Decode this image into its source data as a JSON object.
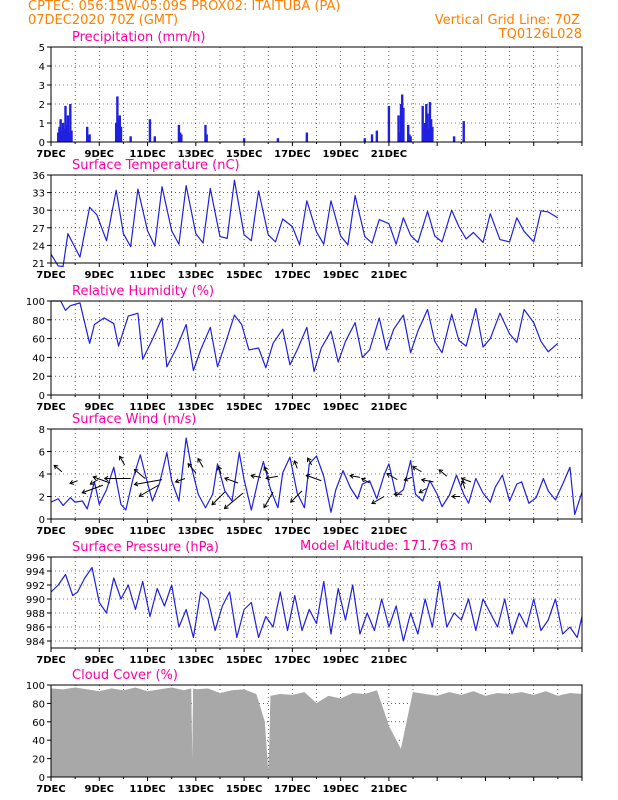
{
  "header": {
    "line1_left": "CPTEC:    056:15W-05:09S   PROX02: ITAITUBA (PA)",
    "line2_left": "07DEC2020 70Z (GMT)",
    "line2_right": "Vertical Grid Line: 70Z",
    "line3_right": "TQ0126L028",
    "model_altitude": "Model Altitude: 171.763 m"
  },
  "colors": {
    "header": "#ff7f00",
    "panel_title": "#ff00a0",
    "series": "#2020e0",
    "cloud_fill": "#a8a8a8",
    "wind_arrow": "#000000"
  },
  "chart_data": [
    {
      "type": "bar",
      "title": "Precipitation (mm/h)",
      "ylim": [
        0,
        5
      ],
      "yticks": [
        0,
        1,
        2,
        3,
        4,
        5
      ],
      "x_tick_labels": [
        "7DEC",
        "9DEC",
        "11DEC",
        "13DEC",
        "15DEC",
        "17DEC",
        "19DEC",
        "21DEC"
      ],
      "grid": true,
      "x_day": [
        0.3,
        0.35,
        0.4,
        0.45,
        0.5,
        0.55,
        0.6,
        0.65,
        0.7,
        0.75,
        0.8,
        0.85,
        1.5,
        1.55,
        1.6,
        2.7,
        2.75,
        2.8,
        2.85,
        2.9,
        3.3,
        4.1,
        4.3,
        5.3,
        5.35,
        5.4,
        6.4,
        6.45,
        8.0,
        9.4,
        10.6,
        13.0,
        13.3,
        13.5,
        14.0,
        14.4,
        14.45,
        14.5,
        14.55,
        14.6,
        14.8,
        14.85,
        14.9,
        15.4,
        15.45,
        15.5,
        15.55,
        15.6,
        15.65,
        15.7,
        15.75,
        15.8,
        16.7,
        17.1
      ],
      "values": [
        0.5,
        0.8,
        1.2,
        0.6,
        1.0,
        0.7,
        1.9,
        0.9,
        1.4,
        0.5,
        2.0,
        0.6,
        0.8,
        0.3,
        0.4,
        1.0,
        2.4,
        1.2,
        1.4,
        0.8,
        0.3,
        1.2,
        0.3,
        0.9,
        0.5,
        0.4,
        0.9,
        0.4,
        0.2,
        0.2,
        0.5,
        0.2,
        0.4,
        0.6,
        1.9,
        1.4,
        0.5,
        2.0,
        2.5,
        1.8,
        0.9,
        0.4,
        0.3,
        1.9,
        0.8,
        1.0,
        2.0,
        1.5,
        0.7,
        2.1,
        1.2,
        0.8,
        0.3,
        1.1
      ]
    },
    {
      "type": "line",
      "title": "Surface Temperature (nC)",
      "ylim": [
        21,
        36
      ],
      "yticks": [
        21,
        24,
        27,
        30,
        33,
        36
      ],
      "x_tick_labels": [
        "7DEC",
        "9DEC",
        "11DEC",
        "13DEC",
        "15DEC",
        "17DEC",
        "19DEC",
        "21DEC"
      ],
      "grid": true,
      "x_day": [
        0,
        0.3,
        0.5,
        0.7,
        1.2,
        1.6,
        1.9,
        2.3,
        2.7,
        3.0,
        3.3,
        3.6,
        4.0,
        4.3,
        4.6,
        5.0,
        5.3,
        5.6,
        6.0,
        6.3,
        6.6,
        7.0,
        7.3,
        7.6,
        8.0,
        8.3,
        8.6,
        9.0,
        9.3,
        9.6,
        10.0,
        10.3,
        10.6,
        11.0,
        11.3,
        11.6,
        12.0,
        12.3,
        12.6,
        13.0,
        13.3,
        13.6,
        14.0,
        14.3,
        14.6,
        14.9,
        15.2,
        15.6,
        15.9,
        16.2,
        16.6,
        16.9,
        17.2,
        17.5,
        17.9,
        18.2,
        18.6,
        19.0,
        19.3,
        19.6,
        20.0,
        20.3,
        20.6,
        21.0
      ],
      "values": [
        22.5,
        20.5,
        20.4,
        26,
        22,
        30.5,
        29.2,
        24.8,
        33.4,
        26,
        23.8,
        33.6,
        26.5,
        23.9,
        34,
        26.5,
        24.2,
        34.2,
        26,
        24.4,
        33.7,
        25.5,
        25.2,
        35.1,
        25.8,
        24.8,
        33.3,
        25.8,
        24.6,
        28.5,
        27.2,
        24.1,
        31.6,
        26.3,
        24.2,
        31.6,
        25.6,
        24.1,
        32.5,
        25.5,
        24.4,
        28.4,
        27.7,
        24.2,
        28.7,
        25.7,
        24.5,
        29.8,
        25.6,
        24.6,
        30,
        27.2,
        25.1,
        26.2,
        24.5,
        29.4,
        25,
        24.6,
        28.7,
        26.4,
        24.6,
        29.9,
        29.7,
        28.7
      ]
    },
    {
      "type": "line",
      "title": "Relative Humidity (%)",
      "ylim": [
        0,
        100
      ],
      "yticks": [
        0,
        20,
        40,
        60,
        80,
        100
      ],
      "x_tick_labels": [
        "7DEC",
        "9DEC",
        "11DEC",
        "13DEC",
        "15DEC",
        "17DEC",
        "19DEC",
        "21DEC"
      ],
      "grid": true,
      "x_day": [
        0,
        0.4,
        0.6,
        0.8,
        1.2,
        1.6,
        1.8,
        2.2,
        2.6,
        2.8,
        3.2,
        3.6,
        3.8,
        4.2,
        4.6,
        4.8,
        5.2,
        5.6,
        5.9,
        6.2,
        6.6,
        6.9,
        7.2,
        7.6,
        7.9,
        8.2,
        8.6,
        8.9,
        9.2,
        9.6,
        9.9,
        10.2,
        10.6,
        10.9,
        11.2,
        11.6,
        11.9,
        12.2,
        12.6,
        12.9,
        13.2,
        13.6,
        13.9,
        14.2,
        14.6,
        14.9,
        15.2,
        15.6,
        15.9,
        16.2,
        16.6,
        16.9,
        17.2,
        17.6,
        17.9,
        18.2,
        18.6,
        19.0,
        19.3,
        19.6,
        20.0,
        20.3,
        20.6,
        21.0
      ],
      "values": [
        100,
        100,
        90,
        95,
        98,
        55,
        75,
        82,
        76,
        52,
        84,
        87,
        38,
        59,
        82,
        30,
        50,
        75,
        26,
        48,
        72,
        30,
        53,
        85,
        75,
        48,
        50,
        29,
        55,
        70,
        32,
        48,
        72,
        25,
        50,
        68,
        35,
        57,
        77,
        40,
        48,
        82,
        48,
        70,
        85,
        45,
        68,
        91,
        57,
        45,
        86,
        58,
        52,
        92,
        51,
        60,
        87,
        65,
        56,
        91,
        77,
        57,
        46,
        55
      ]
    },
    {
      "type": "line",
      "title": "Surface Wind (m/s)",
      "ylim": [
        0,
        8
      ],
      "yticks": [
        0,
        2,
        4,
        6,
        8
      ],
      "x_tick_labels": [
        "7DEC",
        "9DEC",
        "11DEC",
        "13DEC",
        "15DEC",
        "17DEC",
        "19DEC",
        "21DEC"
      ],
      "grid": true,
      "x_day": [
        0,
        0.3,
        0.5,
        0.8,
        1.0,
        1.3,
        1.5,
        1.8,
        2.0,
        2.3,
        2.6,
        2.9,
        3.1,
        3.4,
        3.7,
        3.9,
        4.2,
        4.5,
        4.8,
        5.0,
        5.3,
        5.6,
        5.8,
        6.1,
        6.4,
        6.7,
        6.9,
        7.2,
        7.5,
        7.8,
        8.0,
        8.3,
        8.6,
        8.8,
        9.1,
        9.4,
        9.6,
        9.9,
        10.2,
        10.5,
        10.7,
        11.0,
        11.3,
        11.6,
        11.8,
        12.1,
        12.4,
        12.7,
        12.9,
        13.2,
        13.5,
        13.8,
        14.0,
        14.3,
        14.6,
        14.9,
        15.1,
        15.4,
        15.7,
        16.0,
        16.2,
        16.5,
        16.8,
        17.1,
        17.3,
        17.6,
        17.9,
        18.2,
        18.4,
        18.7,
        19.0,
        19.3,
        19.5,
        19.8,
        20.1,
        20.4,
        20.6,
        20.9,
        21.2,
        21.5,
        21.7,
        22.0
      ],
      "values": [
        1.5,
        1.8,
        1.2,
        1.9,
        1.5,
        1.6,
        0.9,
        3.3,
        1.3,
        2.6,
        4.6,
        1.3,
        0.8,
        3.6,
        5.7,
        4,
        1.6,
        3.2,
        5.9,
        3.4,
        1.6,
        7.2,
        4.8,
        2.2,
        1,
        2.2,
        4.9,
        2.5,
        1.6,
        5.9,
        3.5,
        0.8,
        3.6,
        5.1,
        2.6,
        1,
        4.1,
        5.5,
        2.3,
        1,
        4.9,
        5.6,
        3.8,
        0.6,
        2.6,
        4.3,
        2.8,
        1.8,
        3.1,
        3.4,
        1.8,
        3.9,
        4.9,
        2.1,
        2.6,
        5.2,
        2.2,
        1.6,
        3.4,
        2.2,
        1.1,
        2.1,
        3.9,
        2.2,
        1.4,
        3.6,
        2.3,
        1.5,
        2.8,
        3.9,
        1.6,
        3.1,
        3.3,
        1.4,
        1.9,
        3.6,
        2.5,
        1.7,
        3.1,
        4.6,
        0.4,
        2.4
      ],
      "vectors": [
        {
          "x_day": 0.45,
          "level": 4.2,
          "dir_deg": 140,
          "len": 10
        },
        {
          "x_day": 1.1,
          "level": 3.4,
          "dir_deg": 200,
          "len": 8
        },
        {
          "x_day": 1.95,
          "level": 3.5,
          "dir_deg": 210,
          "len": 9
        },
        {
          "x_day": 2.15,
          "level": 3.0,
          "dir_deg": 200,
          "len": 22
        },
        {
          "x_day": 2.45,
          "level": 3.2,
          "dir_deg": 160,
          "len": 18
        },
        {
          "x_day": 3.05,
          "level": 4.8,
          "dir_deg": 120,
          "len": 10
        },
        {
          "x_day": 3.3,
          "level": 3.6,
          "dir_deg": 180,
          "len": 26
        },
        {
          "x_day": 3.9,
          "level": 3.6,
          "dir_deg": 140,
          "len": 14
        },
        {
          "x_day": 4.45,
          "level": 3.0,
          "dir_deg": 210,
          "len": 22
        },
        {
          "x_day": 4.6,
          "level": 3.5,
          "dir_deg": 190,
          "len": 28
        },
        {
          "x_day": 5.55,
          "level": 3.6,
          "dir_deg": 200,
          "len": 10
        },
        {
          "x_day": 6.0,
          "level": 4.1,
          "dir_deg": 130,
          "len": 12
        },
        {
          "x_day": 6.3,
          "level": 4.6,
          "dir_deg": 120,
          "len": 10
        },
        {
          "x_day": 7.05,
          "level": 4.0,
          "dir_deg": 110,
          "len": 8
        },
        {
          "x_day": 7.2,
          "level": 2.4,
          "dir_deg": 225,
          "len": 18
        },
        {
          "x_day": 7.75,
          "level": 3.2,
          "dir_deg": 160,
          "len": 14
        },
        {
          "x_day": 7.95,
          "level": 2.3,
          "dir_deg": 220,
          "len": 24
        },
        {
          "x_day": 8.7,
          "level": 3.7,
          "dir_deg": 170,
          "len": 10
        },
        {
          "x_day": 9.0,
          "level": 4.0,
          "dir_deg": 120,
          "len": 8
        },
        {
          "x_day": 9.2,
          "level": 2.4,
          "dir_deg": 240,
          "len": 18
        },
        {
          "x_day": 9.4,
          "level": 3.8,
          "dir_deg": 190,
          "len": 12
        },
        {
          "x_day": 10.2,
          "level": 4.5,
          "dir_deg": 110,
          "len": 8
        },
        {
          "x_day": 10.4,
          "level": 2.5,
          "dir_deg": 225,
          "len": 16
        },
        {
          "x_day": 10.8,
          "level": 4.8,
          "dir_deg": 120,
          "len": 8
        },
        {
          "x_day": 11.2,
          "level": 3.4,
          "dir_deg": 160,
          "len": 16
        },
        {
          "x_day": 12.8,
          "level": 3.7,
          "dir_deg": 170,
          "len": 10
        },
        {
          "x_day": 13.2,
          "level": 3.2,
          "dir_deg": 150,
          "len": 9
        },
        {
          "x_day": 13.8,
          "level": 2.0,
          "dir_deg": 210,
          "len": 14
        },
        {
          "x_day": 14.35,
          "level": 3.5,
          "dir_deg": 150,
          "len": 12
        },
        {
          "x_day": 14.55,
          "level": 2.2,
          "dir_deg": 180,
          "len": 8
        },
        {
          "x_day": 14.95,
          "level": 3.7,
          "dir_deg": 200,
          "len": 8
        },
        {
          "x_day": 15.35,
          "level": 4.2,
          "dir_deg": 150,
          "len": 10
        },
        {
          "x_day": 15.55,
          "level": 2.7,
          "dir_deg": 210,
          "len": 8
        },
        {
          "x_day": 15.85,
          "level": 3.3,
          "dir_deg": 170,
          "len": 12
        },
        {
          "x_day": 16.4,
          "level": 3.8,
          "dir_deg": 140,
          "len": 10
        },
        {
          "x_day": 16.95,
          "level": 2.0,
          "dir_deg": 180,
          "len": 8
        },
        {
          "x_day": 17.15,
          "level": 2.7,
          "dir_deg": 110,
          "len": 8
        },
        {
          "x_day": 17.4,
          "level": 3.3,
          "dir_deg": 160,
          "len": 10
        }
      ]
    },
    {
      "type": "line",
      "title": "Surface Pressure (hPa)",
      "ylim": [
        983,
        996
      ],
      "yticks": [
        984,
        986,
        988,
        990,
        992,
        994,
        996
      ],
      "x_tick_labels": [
        "7DEC",
        "9DEC",
        "11DEC",
        "13DEC",
        "15DEC",
        "17DEC",
        "19DEC",
        "21DEC"
      ],
      "grid": true,
      "x_day": [
        0,
        0.3,
        0.6,
        0.9,
        1.1,
        1.4,
        1.7,
        2.0,
        2.3,
        2.6,
        2.9,
        3.2,
        3.5,
        3.8,
        4.1,
        4.4,
        4.7,
        5.0,
        5.3,
        5.6,
        5.9,
        6.2,
        6.5,
        6.8,
        7.1,
        7.4,
        7.7,
        8.0,
        8.3,
        8.6,
        8.9,
        9.2,
        9.5,
        9.8,
        10.1,
        10.4,
        10.7,
        11.0,
        11.3,
        11.6,
        11.9,
        12.2,
        12.5,
        12.8,
        13.1,
        13.4,
        13.7,
        14.0,
        14.3,
        14.6,
        14.9,
        15.2,
        15.5,
        15.8,
        16.1,
        16.4,
        16.7,
        17.0,
        17.3,
        17.6,
        17.9,
        18.2,
        18.5,
        18.8,
        19.1,
        19.4,
        19.7,
        20.0,
        20.3,
        20.6,
        20.9,
        21.2,
        21.5,
        21.8,
        22.0
      ],
      "values": [
        991,
        992,
        993.5,
        990.5,
        991,
        993,
        994.5,
        989.5,
        988,
        993,
        990,
        992,
        988.5,
        992.5,
        987.5,
        991.5,
        989,
        992,
        986,
        988.5,
        984.5,
        991,
        990,
        985.5,
        989,
        991,
        984.5,
        988.5,
        989.5,
        984.5,
        987.5,
        986,
        991,
        985.5,
        990.5,
        985.5,
        988.5,
        986.5,
        992.5,
        985,
        991.5,
        987,
        992,
        985,
        988,
        985.5,
        990,
        986,
        989,
        984,
        988,
        985,
        990,
        986,
        992.5,
        986,
        988,
        987,
        990,
        985.5,
        990,
        988,
        986,
        990,
        985,
        988,
        986,
        990,
        985.5,
        987,
        990,
        985,
        986,
        984.5,
        987.5
      ]
    },
    {
      "type": "area",
      "title": "Cloud Cover (%)",
      "ylim": [
        0,
        100
      ],
      "yticks": [
        0,
        20,
        40,
        60,
        80,
        100
      ],
      "x_tick_labels": [
        "7DEC",
        "9DEC",
        "11DEC",
        "13DEC",
        "15DEC",
        "17DEC",
        "19DEC",
        "21DEC"
      ],
      "grid": true,
      "x_day": [
        0,
        0.5,
        1.0,
        1.5,
        2.0,
        2.5,
        3.0,
        3.5,
        4.0,
        4.5,
        5.0,
        5.5,
        5.8,
        5.85,
        5.9,
        6.0,
        6.5,
        7.0,
        7.5,
        8.0,
        8.5,
        8.85,
        9.0,
        9.03,
        9.06,
        9.1,
        9.5,
        10.0,
        10.5,
        11.0,
        11.5,
        12.0,
        12.5,
        13.0,
        13.5,
        14.0,
        14.5,
        15.0,
        15.5,
        16.0,
        16.5,
        17.0,
        17.5,
        18.0,
        18.5,
        19.0,
        19.5,
        20.0,
        20.5,
        21.0,
        21.5,
        22.0
      ],
      "values": [
        96,
        95,
        97,
        95,
        93,
        96,
        94,
        97,
        93,
        95,
        97,
        94,
        96,
        5,
        96,
        95,
        96,
        91,
        94,
        95,
        90,
        60,
        2,
        20,
        40,
        88,
        90,
        89,
        92,
        80,
        88,
        85,
        91,
        90,
        94,
        55,
        30,
        92,
        90,
        88,
        92,
        89,
        93,
        88,
        91,
        90,
        92,
        89,
        93,
        88,
        91,
        90
      ]
    }
  ]
}
